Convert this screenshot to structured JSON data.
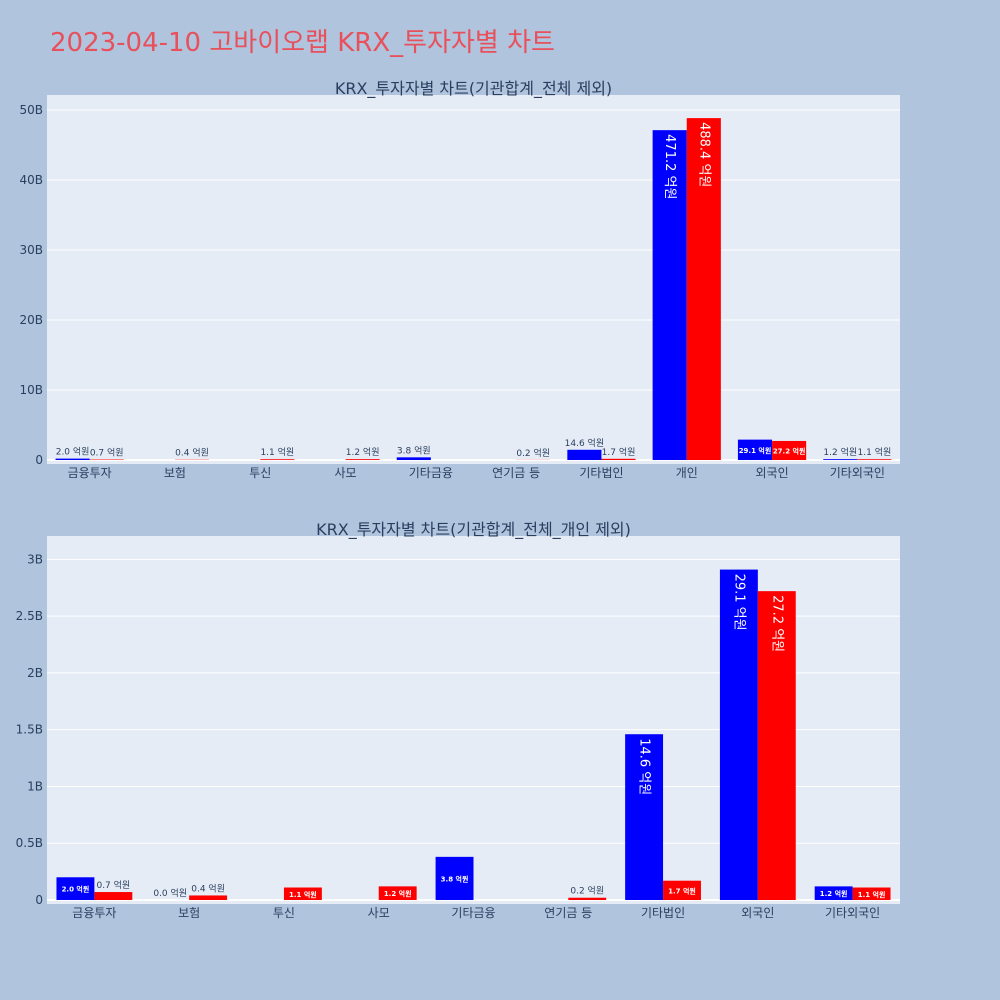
{
  "page_title": "2023-04-10 고바이오랩 KRX_투자자별 차트",
  "colors": {
    "buy": "#0000ff",
    "sell": "#ff0000",
    "title": "#e8505b",
    "background": "#b0c4de",
    "plot_background": "#e5ecf6"
  },
  "chart_data": [
    {
      "type": "bar",
      "title": "KRX_투자자별 차트(기관합계_전체 제외)",
      "categories": [
        "금융투자",
        "보험",
        "투신",
        "사모",
        "기타금융",
        "연기금 등",
        "기타법인",
        "개인",
        "외국인",
        "기타외국인"
      ],
      "ylim": [
        0,
        50000000000
      ],
      "y_tick_values": [
        0,
        10000000000,
        20000000000,
        30000000000,
        40000000000,
        50000000000
      ],
      "y_tick_labels": [
        "0",
        "10B",
        "20B",
        "30B",
        "40B",
        "50B"
      ],
      "series": [
        {
          "values": [
            200000000,
            0,
            0,
            0,
            380000000,
            0,
            1460000000,
            47120000000,
            2910000000,
            120000000
          ],
          "labels": [
            "2.0 억원",
            "",
            "",
            "",
            "3.8 억원",
            "",
            "14.6 억원",
            "471.2 억원",
            "29.1 억원",
            "1.2 억원"
          ]
        },
        {
          "values": [
            70000000,
            40000000,
            110000000,
            120000000,
            0,
            20000000,
            170000000,
            48840000000,
            2720000000,
            110000000
          ],
          "labels": [
            "0.7 억원",
            "0.4 억원",
            "1.1 억원",
            "1.2 억원",
            "",
            "0.2 억원",
            "1.7 억원",
            "488.4 억원",
            "27.2 억원",
            "1.1 억원"
          ]
        }
      ],
      "grid": true
    },
    {
      "type": "bar",
      "title": "KRX_투자자별 차트(기관합계_전체_개인 제외)",
      "categories": [
        "금융투자",
        "보험",
        "투신",
        "사모",
        "기타금융",
        "연기금 등",
        "기타법인",
        "외국인",
        "기타외국인"
      ],
      "ylim": [
        0,
        3100000000
      ],
      "y_tick_values": [
        0,
        500000000,
        1000000000,
        1500000000,
        2000000000,
        2500000000,
        3000000000
      ],
      "y_tick_labels": [
        "0",
        "0.5B",
        "1B",
        "1.5B",
        "2B",
        "2.5B",
        "3B"
      ],
      "series": [
        {
          "values": [
            200000000,
            0,
            0,
            0,
            380000000,
            0,
            1460000000,
            2910000000,
            120000000
          ],
          "labels": [
            "2.0 억원",
            "0.0 억원",
            "",
            "",
            "3.8 억원",
            "",
            "14.6 억원",
            "29.1 억원",
            "1.2 억원"
          ]
        },
        {
          "values": [
            70000000,
            40000000,
            110000000,
            120000000,
            0,
            20000000,
            170000000,
            2720000000,
            110000000
          ],
          "labels": [
            "0.7 억원",
            "0.4 억원",
            "1.1 억원",
            "1.2 억원",
            "",
            "0.2 억원",
            "1.7 억원",
            "27.2 억원",
            "1.1 억원"
          ]
        }
      ],
      "grid": true
    }
  ]
}
